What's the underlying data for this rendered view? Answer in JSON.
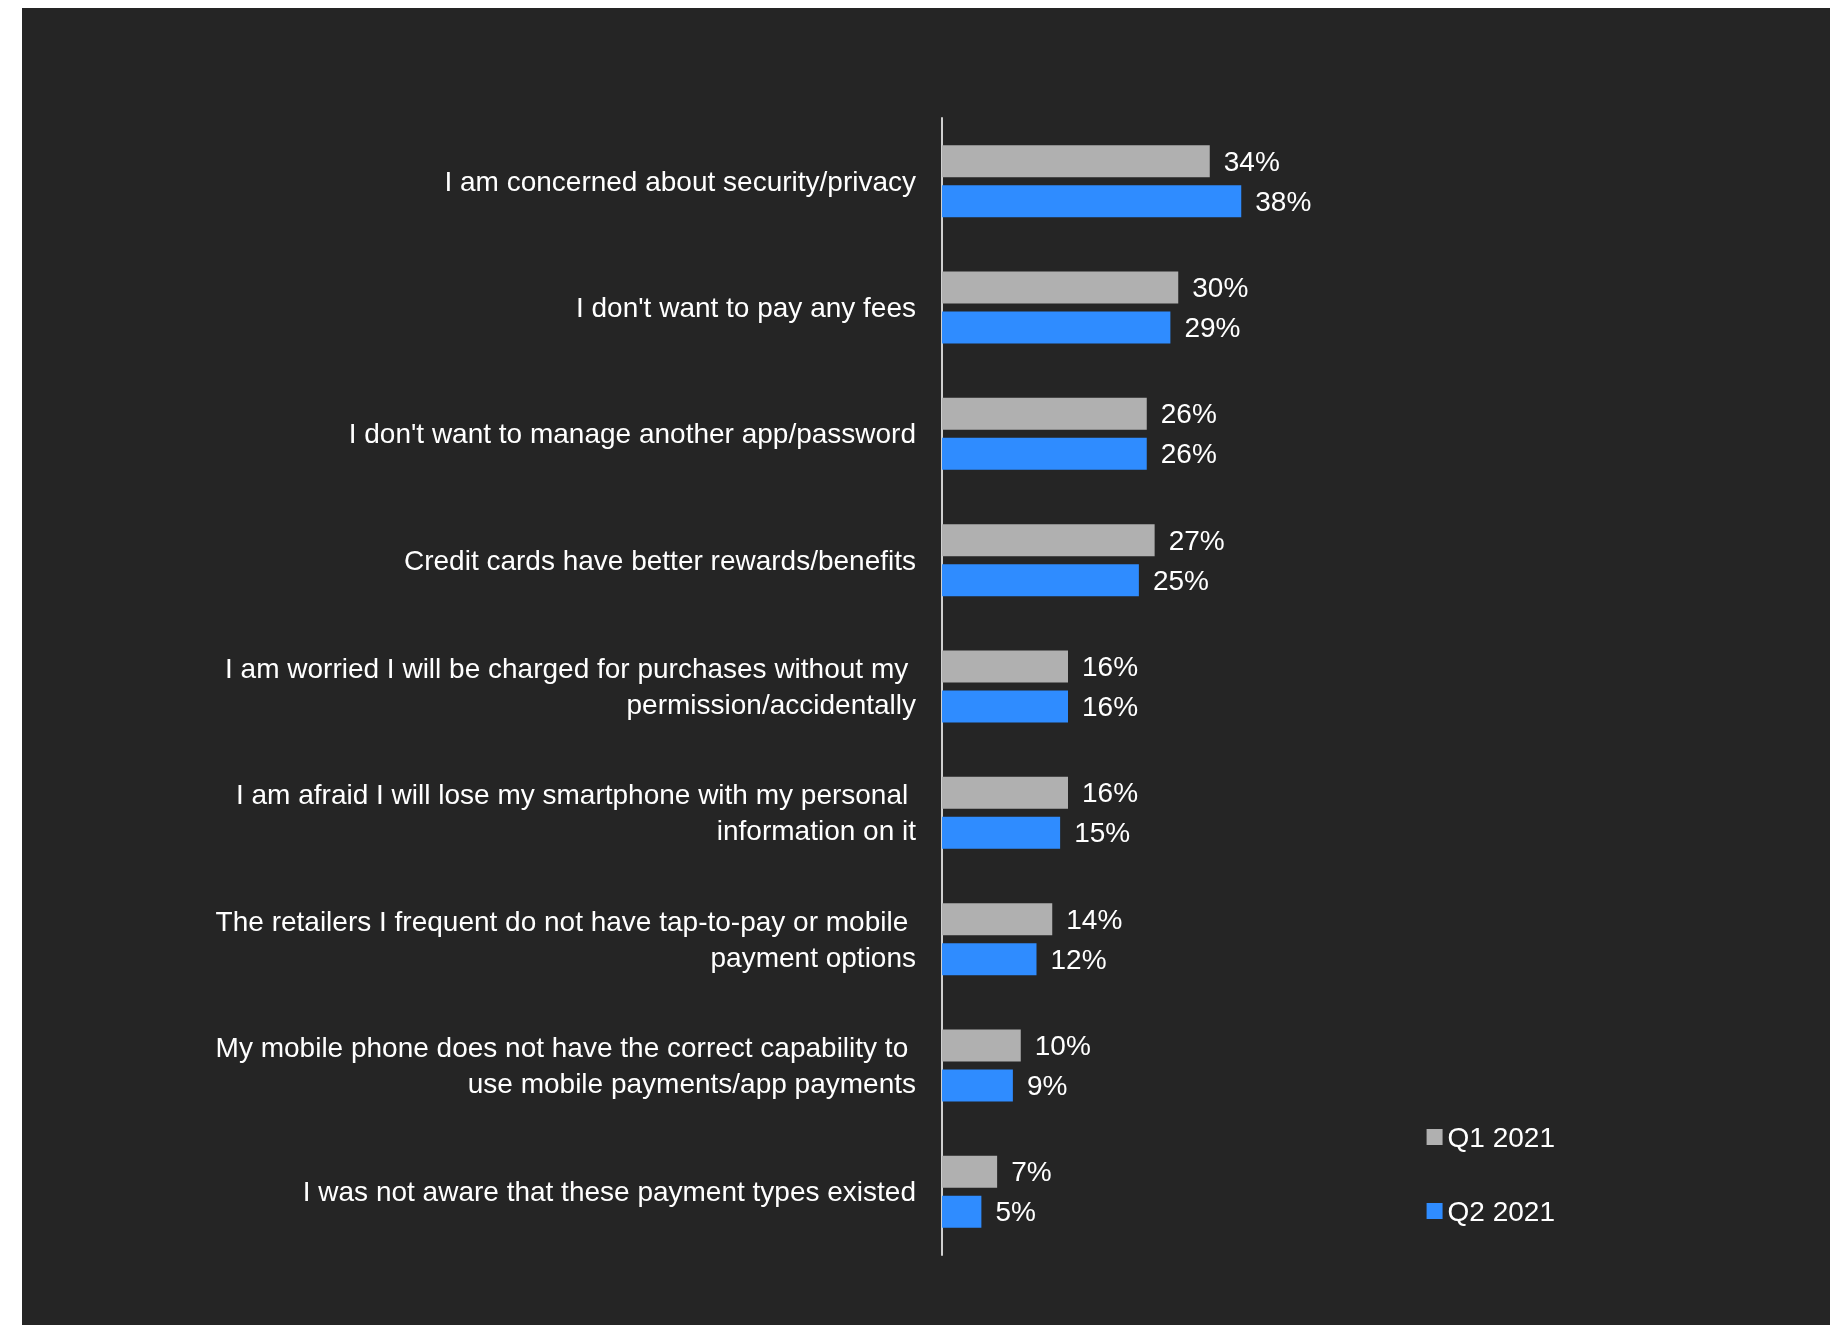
{
  "chart_data": {
    "type": "bar",
    "orientation": "horizontal",
    "categories": [
      "I am concerned about security/privacy",
      "I don't want to pay any fees",
      "I don't want to manage another app/password",
      "Credit cards have better rewards/benefits",
      "I am worried I will be charged for purchases without my permission/accidentally",
      "I am afraid I will lose my smartphone with my personal information on it",
      "The retailers I frequent do not have tap-to-pay or mobile payment options",
      "My mobile phone does not have the correct capability to use mobile payments/app payments",
      "I was not aware that these payment types existed"
    ],
    "series": [
      {
        "name": "Q1 2021",
        "color": "#b0b0b0",
        "values": [
          34,
          30,
          26,
          27,
          16,
          16,
          14,
          10,
          7
        ],
        "value_labels": [
          "34%",
          "30%",
          "26%",
          "27%",
          "16%",
          "16%",
          "14%",
          "10%",
          "7%"
        ]
      },
      {
        "name": "Q2 2021",
        "color": "#2f8cff",
        "values": [
          38,
          29,
          26,
          25,
          16,
          15,
          12,
          9,
          5
        ],
        "value_labels": [
          "38%",
          "29%",
          "26%",
          "25%",
          "16%",
          "15%",
          "12%",
          "9%",
          "5%"
        ]
      }
    ],
    "legend": "bottom right"
  }
}
